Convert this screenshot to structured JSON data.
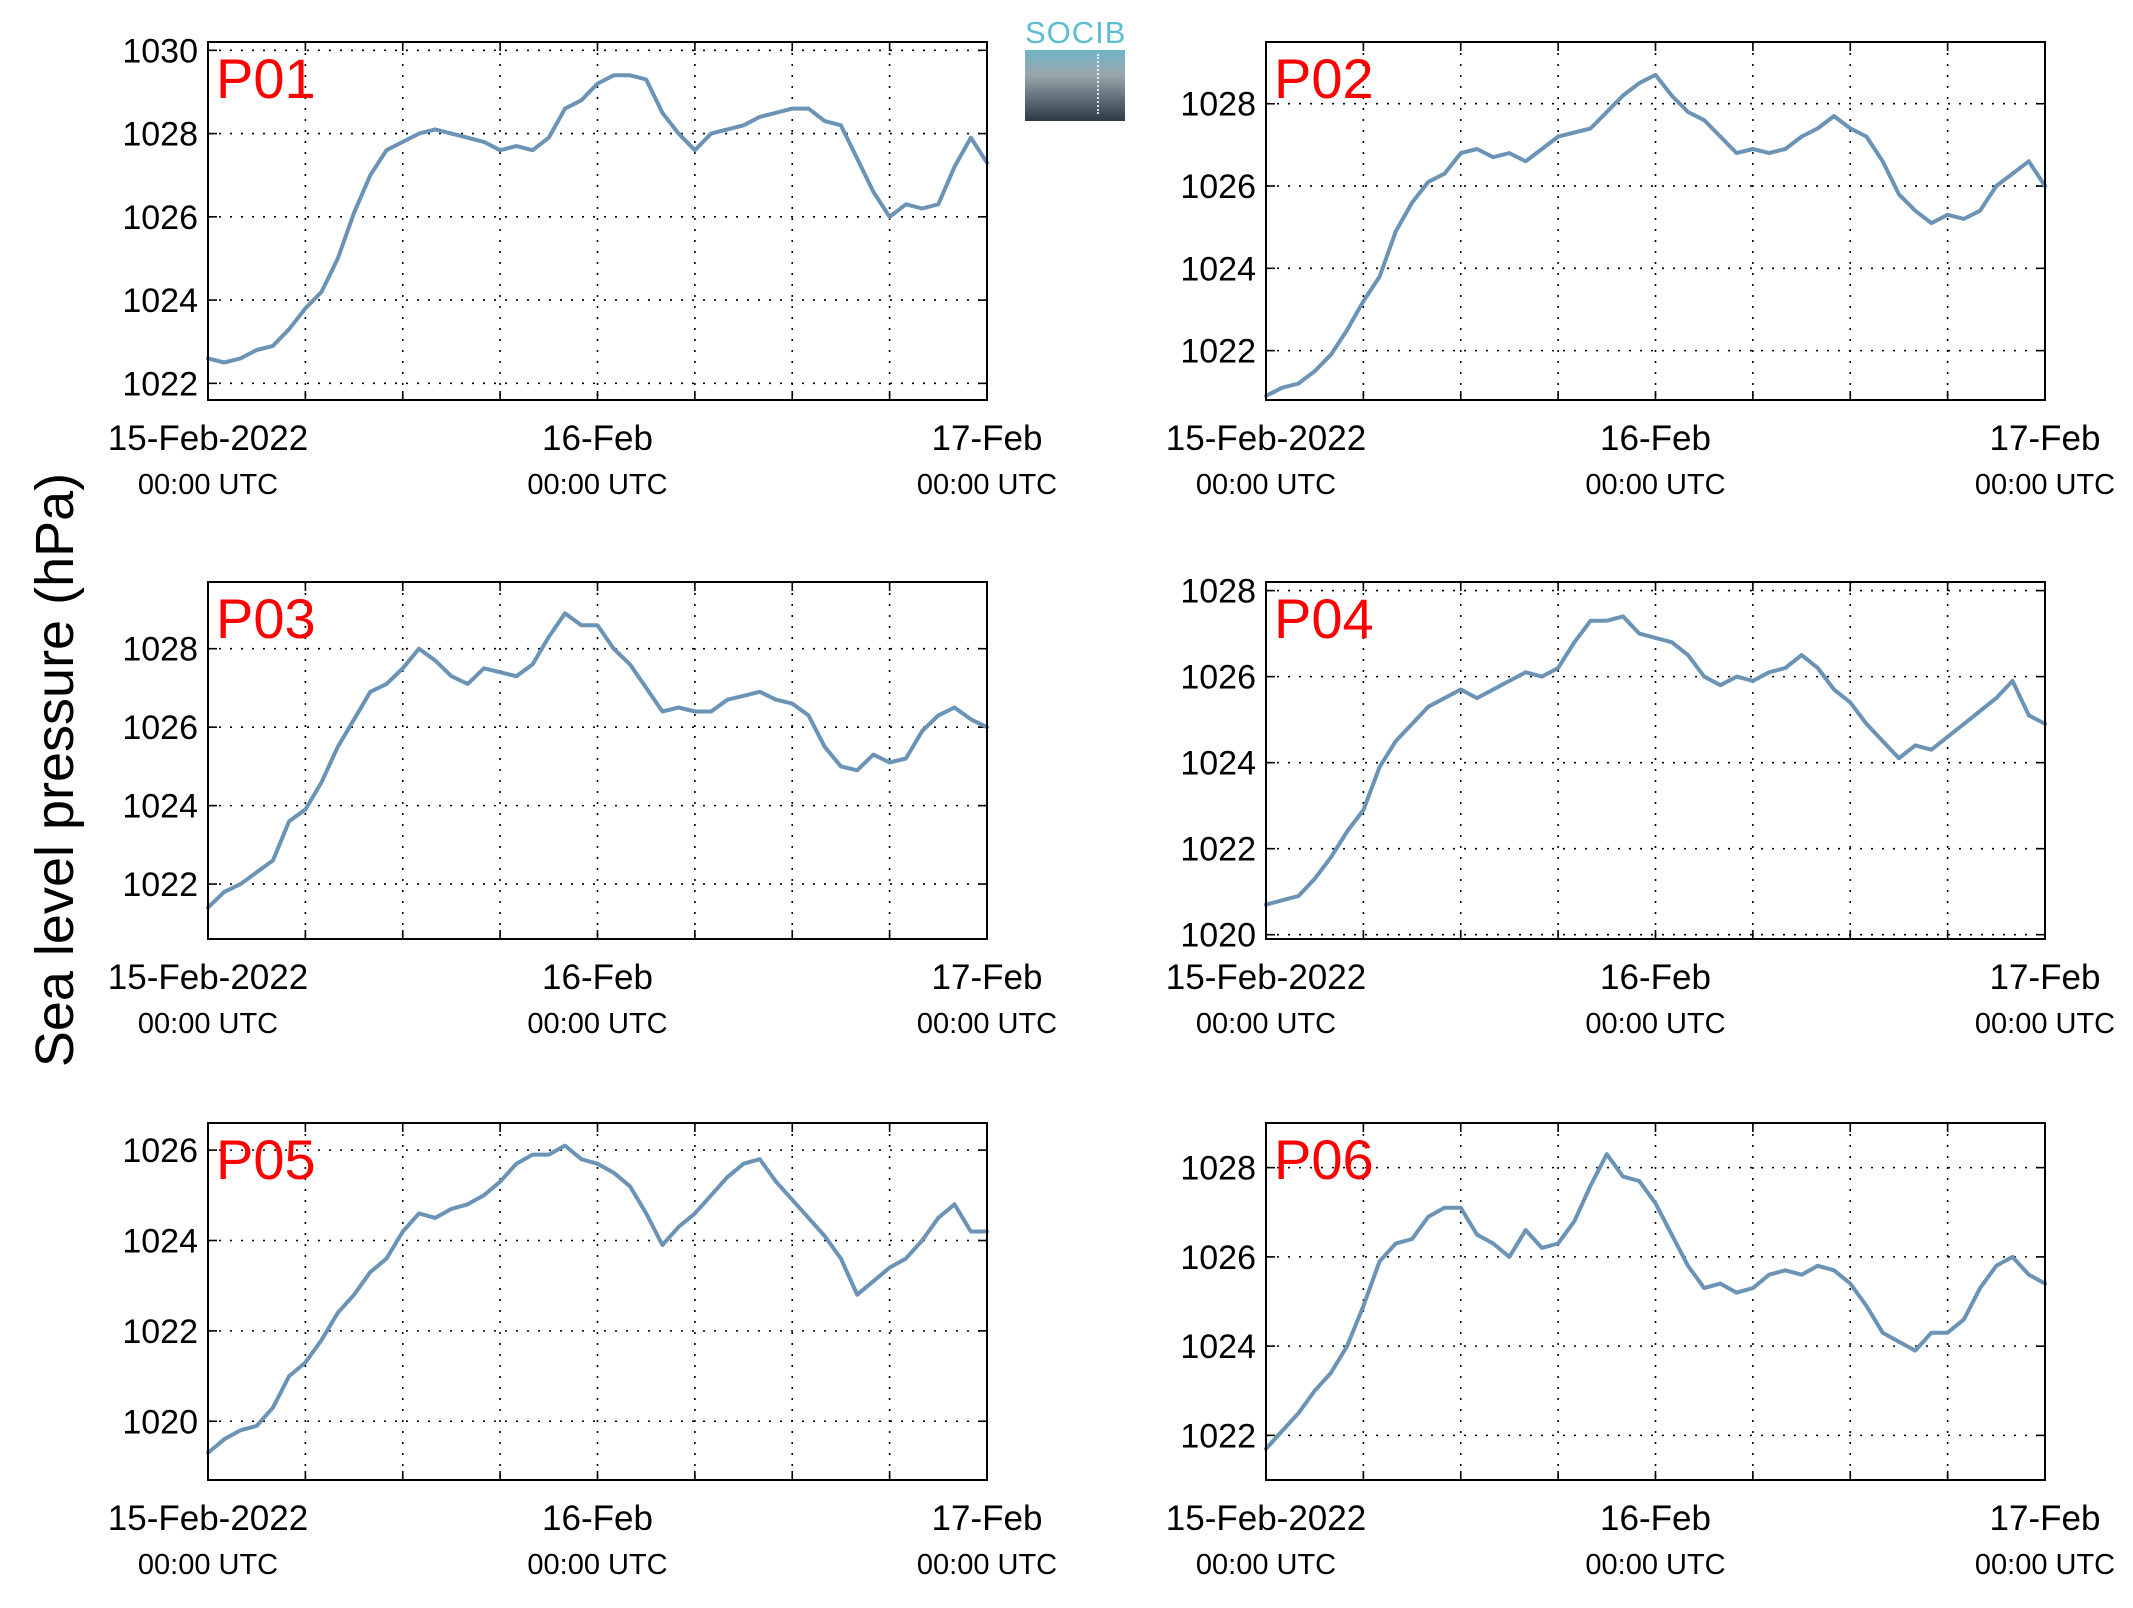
{
  "figure": {
    "ylabel": "Sea level pressure (hPa)",
    "logo_text": "SOCIB",
    "line_color": "#6a93b5",
    "panel_label_color": "#ff0000"
  },
  "chart_data": [
    {
      "type": "line",
      "panel_label": "P01",
      "xlim": [
        "2022-02-15 00:00",
        "2022-02-17 00:00"
      ],
      "ylim": [
        1021.6,
        1030.2
      ],
      "xticks": [
        {
          "main": "15-Feb-2022",
          "sub": "00:00 UTC"
        },
        {
          "main": "16-Feb",
          "sub": "00:00 UTC"
        },
        {
          "main": "17-Feb",
          "sub": "00:00 UTC"
        }
      ],
      "yticks": [
        1022,
        1024,
        1026,
        1028,
        1030
      ],
      "grid": true,
      "x_hours": [
        0,
        1,
        2,
        3,
        4,
        5,
        6,
        7,
        8,
        9,
        10,
        11,
        12,
        13,
        14,
        15,
        16,
        17,
        18,
        19,
        20,
        21,
        22,
        23,
        24,
        25,
        26,
        27,
        28,
        29,
        30,
        31,
        32,
        33,
        34,
        35,
        36,
        37,
        38,
        39,
        40,
        41,
        42,
        43,
        44,
        45,
        46,
        47,
        48
      ],
      "values": [
        1022.6,
        1022.5,
        1022.6,
        1022.8,
        1022.9,
        1023.3,
        1023.8,
        1024.2,
        1025.0,
        1026.1,
        1027.0,
        1027.6,
        1027.8,
        1028.0,
        1028.1,
        1028.0,
        1027.9,
        1027.8,
        1027.6,
        1027.7,
        1027.6,
        1027.9,
        1028.6,
        1028.8,
        1029.2,
        1029.4,
        1029.4,
        1029.3,
        1028.5,
        1028.0,
        1027.6,
        1028.0,
        1028.1,
        1028.2,
        1028.4,
        1028.5,
        1028.6,
        1028.6,
        1028.3,
        1028.2,
        1027.4,
        1026.6,
        1026.0,
        1026.3,
        1026.2,
        1026.3,
        1027.2,
        1027.9,
        1027.3
      ]
    },
    {
      "type": "line",
      "panel_label": "P02",
      "xlim": [
        "2022-02-15 00:00",
        "2022-02-17 00:00"
      ],
      "ylim": [
        1020.8,
        1029.5
      ],
      "xticks": [
        {
          "main": "15-Feb-2022",
          "sub": "00:00 UTC"
        },
        {
          "main": "16-Feb",
          "sub": "00:00 UTC"
        },
        {
          "main": "17-Feb",
          "sub": "00:00 UTC"
        }
      ],
      "yticks": [
        1022,
        1024,
        1026,
        1028
      ],
      "grid": true,
      "x_hours": [
        0,
        1,
        2,
        3,
        4,
        5,
        6,
        7,
        8,
        9,
        10,
        11,
        12,
        13,
        14,
        15,
        16,
        17,
        18,
        19,
        20,
        21,
        22,
        23,
        24,
        25,
        26,
        27,
        28,
        29,
        30,
        31,
        32,
        33,
        34,
        35,
        36,
        37,
        38,
        39,
        40,
        41,
        42,
        43,
        44,
        45,
        46,
        47,
        48
      ],
      "values": [
        1020.9,
        1021.1,
        1021.2,
        1021.5,
        1021.9,
        1022.5,
        1023.2,
        1023.8,
        1024.9,
        1025.6,
        1026.1,
        1026.3,
        1026.8,
        1026.9,
        1026.7,
        1026.8,
        1026.6,
        1026.9,
        1027.2,
        1027.3,
        1027.4,
        1027.8,
        1028.2,
        1028.5,
        1028.7,
        1028.2,
        1027.8,
        1027.6,
        1027.2,
        1026.8,
        1026.9,
        1026.8,
        1026.9,
        1027.2,
        1027.4,
        1027.7,
        1027.4,
        1027.2,
        1026.6,
        1025.8,
        1025.4,
        1025.1,
        1025.3,
        1025.2,
        1025.4,
        1026.0,
        1026.3,
        1026.6,
        1026.0
      ]
    },
    {
      "type": "line",
      "panel_label": "P03",
      "xlim": [
        "2022-02-15 00:00",
        "2022-02-17 00:00"
      ],
      "ylim": [
        1020.6,
        1029.7
      ],
      "xticks": [
        {
          "main": "15-Feb-2022",
          "sub": "00:00 UTC"
        },
        {
          "main": "16-Feb",
          "sub": "00:00 UTC"
        },
        {
          "main": "17-Feb",
          "sub": "00:00 UTC"
        }
      ],
      "yticks": [
        1022,
        1024,
        1026,
        1028
      ],
      "grid": true,
      "x_hours": [
        0,
        1,
        2,
        3,
        4,
        5,
        6,
        7,
        8,
        9,
        10,
        11,
        12,
        13,
        14,
        15,
        16,
        17,
        18,
        19,
        20,
        21,
        22,
        23,
        24,
        25,
        26,
        27,
        28,
        29,
        30,
        31,
        32,
        33,
        34,
        35,
        36,
        37,
        38,
        39,
        40,
        41,
        42,
        43,
        44,
        45,
        46,
        47,
        48
      ],
      "values": [
        1021.4,
        1021.8,
        1022.0,
        1022.3,
        1022.6,
        1023.6,
        1023.9,
        1024.6,
        1025.5,
        1026.2,
        1026.9,
        1027.1,
        1027.5,
        1028.0,
        1027.7,
        1027.3,
        1027.1,
        1027.5,
        1027.4,
        1027.3,
        1027.6,
        1028.3,
        1028.9,
        1028.6,
        1028.6,
        1028.0,
        1027.6,
        1027.0,
        1026.4,
        1026.5,
        1026.4,
        1026.4,
        1026.7,
        1026.8,
        1026.9,
        1026.7,
        1026.6,
        1026.3,
        1025.5,
        1025.0,
        1024.9,
        1025.3,
        1025.1,
        1025.2,
        1025.9,
        1026.3,
        1026.5,
        1026.2,
        1026.0
      ]
    },
    {
      "type": "line",
      "panel_label": "P04",
      "xlim": [
        "2022-02-15 00:00",
        "2022-02-17 00:00"
      ],
      "ylim": [
        1019.9,
        1028.2
      ],
      "xticks": [
        {
          "main": "15-Feb-2022",
          "sub": "00:00 UTC"
        },
        {
          "main": "16-Feb",
          "sub": "00:00 UTC"
        },
        {
          "main": "17-Feb",
          "sub": "00:00 UTC"
        }
      ],
      "yticks": [
        1020,
        1022,
        1024,
        1026,
        1028
      ],
      "grid": true,
      "x_hours": [
        0,
        1,
        2,
        3,
        4,
        5,
        6,
        7,
        8,
        9,
        10,
        11,
        12,
        13,
        14,
        15,
        16,
        17,
        18,
        19,
        20,
        21,
        22,
        23,
        24,
        25,
        26,
        27,
        28,
        29,
        30,
        31,
        32,
        33,
        34,
        35,
        36,
        37,
        38,
        39,
        40,
        41,
        42,
        43,
        44,
        45,
        46,
        47,
        48
      ],
      "values": [
        1020.7,
        1020.8,
        1020.9,
        1021.3,
        1021.8,
        1022.4,
        1022.9,
        1023.9,
        1024.5,
        1024.9,
        1025.3,
        1025.5,
        1025.7,
        1025.5,
        1025.7,
        1025.9,
        1026.1,
        1026.0,
        1026.2,
        1026.8,
        1027.3,
        1027.3,
        1027.4,
        1027.0,
        1026.9,
        1026.8,
        1026.5,
        1026.0,
        1025.8,
        1026.0,
        1025.9,
        1026.1,
        1026.2,
        1026.5,
        1026.2,
        1025.7,
        1025.4,
        1024.9,
        1024.5,
        1024.1,
        1024.4,
        1024.3,
        1024.6,
        1024.9,
        1025.2,
        1025.5,
        1025.9,
        1025.1,
        1024.9
      ]
    },
    {
      "type": "line",
      "panel_label": "P05",
      "xlim": [
        "2022-02-15 00:00",
        "2022-02-17 00:00"
      ],
      "ylim": [
        1018.7,
        1026.6
      ],
      "xticks": [
        {
          "main": "15-Feb-2022",
          "sub": "00:00 UTC"
        },
        {
          "main": "16-Feb",
          "sub": "00:00 UTC"
        },
        {
          "main": "17-Feb",
          "sub": "00:00 UTC"
        }
      ],
      "yticks": [
        1020,
        1022,
        1024,
        1026
      ],
      "grid": true,
      "x_hours": [
        0,
        1,
        2,
        3,
        4,
        5,
        6,
        7,
        8,
        9,
        10,
        11,
        12,
        13,
        14,
        15,
        16,
        17,
        18,
        19,
        20,
        21,
        22,
        23,
        24,
        25,
        26,
        27,
        28,
        29,
        30,
        31,
        32,
        33,
        34,
        35,
        36,
        37,
        38,
        39,
        40,
        41,
        42,
        43,
        44,
        45,
        46,
        47,
        48
      ],
      "values": [
        1019.3,
        1019.6,
        1019.8,
        1019.9,
        1020.3,
        1021.0,
        1021.3,
        1021.8,
        1022.4,
        1022.8,
        1023.3,
        1023.6,
        1024.2,
        1024.6,
        1024.5,
        1024.7,
        1024.8,
        1025.0,
        1025.3,
        1025.7,
        1025.9,
        1025.9,
        1026.1,
        1025.8,
        1025.7,
        1025.5,
        1025.2,
        1024.6,
        1023.9,
        1024.3,
        1024.6,
        1025.0,
        1025.4,
        1025.7,
        1025.8,
        1025.3,
        1024.9,
        1024.5,
        1024.1,
        1023.6,
        1022.8,
        1023.1,
        1023.4,
        1023.6,
        1024.0,
        1024.5,
        1024.8,
        1024.2,
        1024.2
      ]
    },
    {
      "type": "line",
      "panel_label": "P06",
      "xlim": [
        "2022-02-15 00:00",
        "2022-02-17 00:00"
      ],
      "ylim": [
        1021.0,
        1029.0
      ],
      "xticks": [
        {
          "main": "15-Feb-2022",
          "sub": "00:00 UTC"
        },
        {
          "main": "16-Feb",
          "sub": "00:00 UTC"
        },
        {
          "main": "17-Feb",
          "sub": "00:00 UTC"
        }
      ],
      "yticks": [
        1022,
        1024,
        1026,
        1028
      ],
      "grid": true,
      "x_hours": [
        0,
        1,
        2,
        3,
        4,
        5,
        6,
        7,
        8,
        9,
        10,
        11,
        12,
        13,
        14,
        15,
        16,
        17,
        18,
        19,
        20,
        21,
        22,
        23,
        24,
        25,
        26,
        27,
        28,
        29,
        30,
        31,
        32,
        33,
        34,
        35,
        36,
        37,
        38,
        39,
        40,
        41,
        42,
        43,
        44,
        45,
        46,
        47,
        48
      ],
      "values": [
        1021.7,
        1022.1,
        1022.5,
        1023.0,
        1023.4,
        1024.0,
        1024.9,
        1025.9,
        1026.3,
        1026.4,
        1026.9,
        1027.1,
        1027.1,
        1026.5,
        1026.3,
        1026.0,
        1026.6,
        1026.2,
        1026.3,
        1026.8,
        1027.6,
        1028.3,
        1027.8,
        1027.7,
        1027.2,
        1026.5,
        1025.8,
        1025.3,
        1025.4,
        1025.2,
        1025.3,
        1025.6,
        1025.7,
        1025.6,
        1025.8,
        1025.7,
        1025.4,
        1024.9,
        1024.3,
        1024.1,
        1023.9,
        1024.3,
        1024.3,
        1024.6,
        1025.3,
        1025.8,
        1026.0,
        1025.6,
        1025.4
      ]
    }
  ]
}
